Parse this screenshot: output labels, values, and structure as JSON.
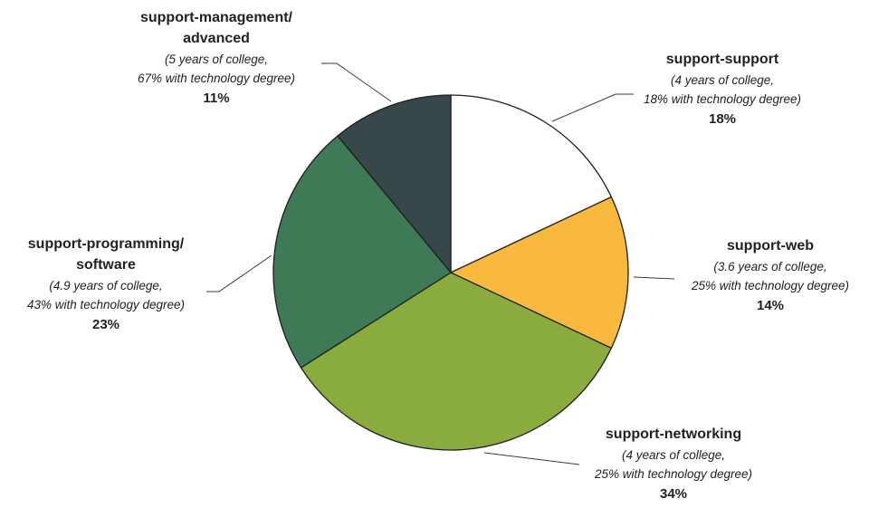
{
  "chart_data": {
    "type": "pie",
    "slices": [
      {
        "name": "support-support",
        "title_lines": [
          "support-support"
        ],
        "note_lines": [
          "(4 years of college,",
          "18% with technology degree)"
        ],
        "value": 18,
        "value_label": "18%",
        "color": "#ffffff"
      },
      {
        "name": "support-web",
        "title_lines": [
          "support-web"
        ],
        "note_lines": [
          "(3.6 years of college,",
          "25% with technology degree)"
        ],
        "value": 14,
        "value_label": "14%",
        "color": "#f9b93e"
      },
      {
        "name": "support-networking",
        "title_lines": [
          "support-networking"
        ],
        "note_lines": [
          "(4 years of college,",
          "25% with technology degree)"
        ],
        "value": 34,
        "value_label": "34%",
        "color": "#8aab3d"
      },
      {
        "name": "support-programming/software",
        "title_lines": [
          "support-programming/",
          "software"
        ],
        "note_lines": [
          "(4.9 years of college,",
          "43% with technology degree)"
        ],
        "value": 23,
        "value_label": "23%",
        "color": "#3f7a57"
      },
      {
        "name": "support-management/advanced",
        "title_lines": [
          "support-management/",
          "advanced"
        ],
        "note_lines": [
          "(5 years of college,",
          "67% with technology degree)"
        ],
        "value": 11,
        "value_label": "11%",
        "color": "#37474a"
      }
    ]
  }
}
